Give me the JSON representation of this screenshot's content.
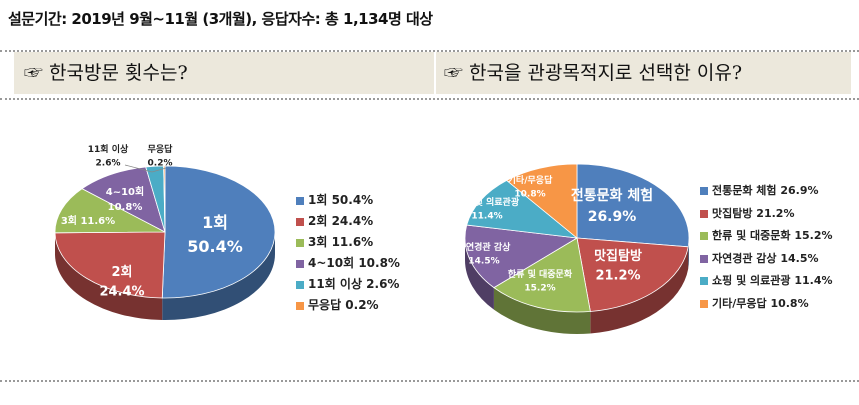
{
  "survey_info": "설문기간: 2019년 9월~11월 (3개월), 응답자수: 총 1,134명 대상",
  "header_left": "☞ 한국방문 횟수는?",
  "header_right": "☞ 한국을 관광목적지로 선택한 이유?",
  "chart_data": [
    {
      "type": "pie",
      "title": "한국방문 횟수는?",
      "categories": [
        "1회",
        "2회",
        "3회",
        "4~10회",
        "11회 이상",
        "무응답"
      ],
      "values": [
        50.4,
        24.4,
        11.6,
        10.8,
        2.6,
        0.2
      ],
      "unit": "%",
      "legend": [
        "1회 50.4%",
        "2회 24.4%",
        "3회 11.6%",
        "4~10회 10.8%",
        "11회 이상 2.6%",
        "무응답 0.2%"
      ],
      "data_labels": [
        [
          "1회",
          "50.4%"
        ],
        [
          "2회",
          "24.4%"
        ],
        [
          "3회 11.6%"
        ],
        [
          "4~10회",
          "10.8%"
        ],
        [
          "11회 이상",
          "2.6%"
        ],
        [
          "무응답",
          "0.2%"
        ]
      ],
      "colors": [
        "#4f7fbc",
        "#c0504d",
        "#9bbb59",
        "#8064a2",
        "#4bacc6",
        "#f79646"
      ],
      "style": "3d",
      "legend_placement": "right"
    },
    {
      "type": "pie",
      "title": "한국을 관광목적지로 선택한 이유?",
      "categories": [
        "전통문화 체험",
        "맛집탐방",
        "한류 및 대중문화",
        "자연경관 감상",
        "쇼핑 및 의료관광",
        "기타/무응답"
      ],
      "values": [
        26.9,
        21.2,
        15.2,
        14.5,
        11.4,
        10.8
      ],
      "unit": "%",
      "legend": [
        "전통문화 체험 26.9%",
        "맛집탐방 21.2%",
        "한류 및 대중문화 15.2%",
        "자연경관 감상 14.5%",
        "쇼핑 및 의료관광 11.4%",
        "기타/무응답 10.8%"
      ],
      "data_labels": [
        [
          "전통문화 체험",
          "26.9%"
        ],
        [
          "맛집탐방",
          "21.2%"
        ],
        [
          "한류 및 대중문화",
          "15.2%"
        ],
        [
          "자연경관 감상",
          "14.5%"
        ],
        [
          "쇼핑 및 의료관광",
          "11.4%"
        ],
        [
          "기타/무응답",
          "10.8%"
        ]
      ],
      "colors": [
        "#4f7fbc",
        "#c0504d",
        "#9bbb59",
        "#8064a2",
        "#4bacc6",
        "#f79646"
      ],
      "style": "3d",
      "legend_placement": "right"
    }
  ]
}
